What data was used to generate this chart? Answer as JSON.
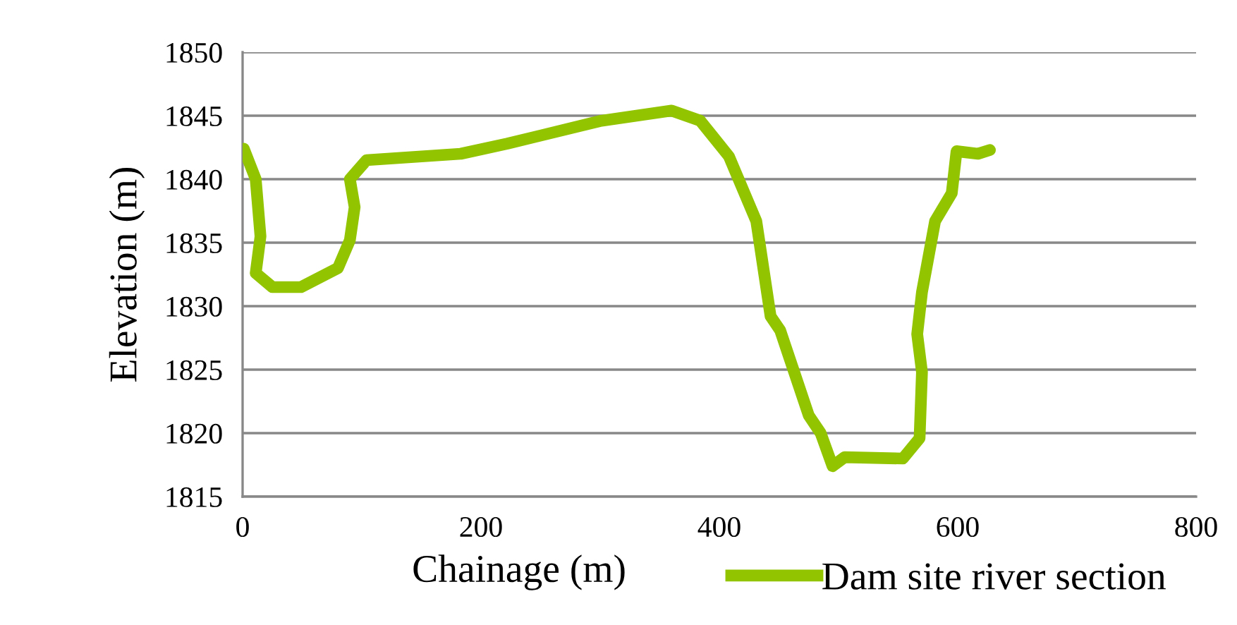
{
  "chart_data": {
    "type": "line",
    "xlabel": "Chainage (m)",
    "ylabel": "Elevation (m)",
    "xlim": [
      0,
      800
    ],
    "xticks": [
      0,
      200,
      400,
      600,
      800
    ],
    "ylim": [
      1815,
      1850
    ],
    "yticks": [
      1815,
      1820,
      1825,
      1830,
      1835,
      1840,
      1845,
      1850
    ],
    "grid": "y",
    "legend": "bottom right",
    "marker": "none",
    "line_style": "solid",
    "series": [
      {
        "name": "Dam site river section",
        "color": "#92c400",
        "x": [
          1,
          11,
          15,
          11,
          25,
          49,
          80,
          90,
          94,
          90,
          104,
          183,
          222,
          301,
          360,
          384,
          408,
          431,
          443,
          451,
          475,
          485,
          495,
          505,
          554,
          568,
          570,
          566,
          570,
          581,
          595,
          599,
          617,
          627
        ],
        "values": [
          1842.4,
          1840,
          1835.5,
          1832.6,
          1831.5,
          1831.5,
          1833,
          1835.2,
          1837.8,
          1840,
          1841.5,
          1842,
          1842.8,
          1844.6,
          1845.4,
          1844.6,
          1841.8,
          1836.7,
          1829.2,
          1828.1,
          1821.4,
          1820,
          1817.4,
          1818.1,
          1818,
          1819.6,
          1824.8,
          1827.8,
          1831.1,
          1836.7,
          1838.9,
          1842.2,
          1842,
          1842.3
        ]
      }
    ]
  }
}
